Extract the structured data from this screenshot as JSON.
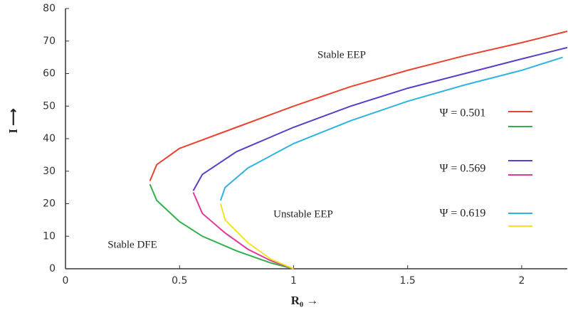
{
  "chart_data": {
    "type": "line",
    "x_label": "R₀ →",
    "y_label": "I ⟶",
    "xlim": [
      0,
      2.2
    ],
    "ylim": [
      0,
      80
    ],
    "xticks": [
      0,
      0.5,
      1,
      1.5,
      2
    ],
    "yticks": [
      0,
      10,
      20,
      30,
      40,
      50,
      60,
      70,
      80
    ],
    "annotations": [
      "Stable EEP",
      "Unstable EEP",
      "Stable DFE"
    ],
    "series": [
      {
        "name": "Ψ = 0.501",
        "branches": [
          {
            "color": "#e8432e",
            "x": [
              0.37,
              0.4,
              0.5,
              0.75,
              1,
              1.25,
              1.5,
              1.75,
              2,
              2.2
            ],
            "values": [
              27,
              32,
              37,
              43.5,
              50,
              56,
              61,
              65.5,
              69.5,
              73
            ]
          },
          {
            "color": "#2fb14a",
            "x": [
              0.37,
              0.4,
              0.5,
              0.6,
              0.75,
              0.9,
              1
            ],
            "values": [
              26,
              21,
              14.5,
              10,
              5.5,
              1.8,
              0
            ]
          }
        ]
      },
      {
        "name": "Ψ = 0.569",
        "branches": [
          {
            "color": "#5a3ec8",
            "x": [
              0.56,
              0.6,
              0.75,
              1,
              1.25,
              1.5,
              1.75,
              2,
              2.2
            ],
            "values": [
              24,
              29,
              36,
              43.5,
              50,
              55.5,
              60,
              64.5,
              68
            ]
          },
          {
            "color": "#e0399a",
            "x": [
              0.56,
              0.6,
              0.7,
              0.8,
              0.9,
              1
            ],
            "values": [
              23.5,
              17,
              11,
              6,
              2.5,
              0
            ]
          }
        ]
      },
      {
        "name": "Ψ = 0.619",
        "branches": [
          {
            "color": "#2fb3e0",
            "x": [
              0.68,
              0.7,
              0.8,
              1,
              1.25,
              1.5,
              1.75,
              2,
              2.18
            ],
            "values": [
              21,
              25,
              31,
              38.5,
              45.5,
              51.5,
              56.5,
              61,
              65
            ]
          },
          {
            "color": "#f2e22a",
            "x": [
              0.68,
              0.7,
              0.8,
              0.9,
              1
            ],
            "values": [
              20,
              15,
              8,
              3,
              0
            ]
          }
        ]
      }
    ]
  }
}
